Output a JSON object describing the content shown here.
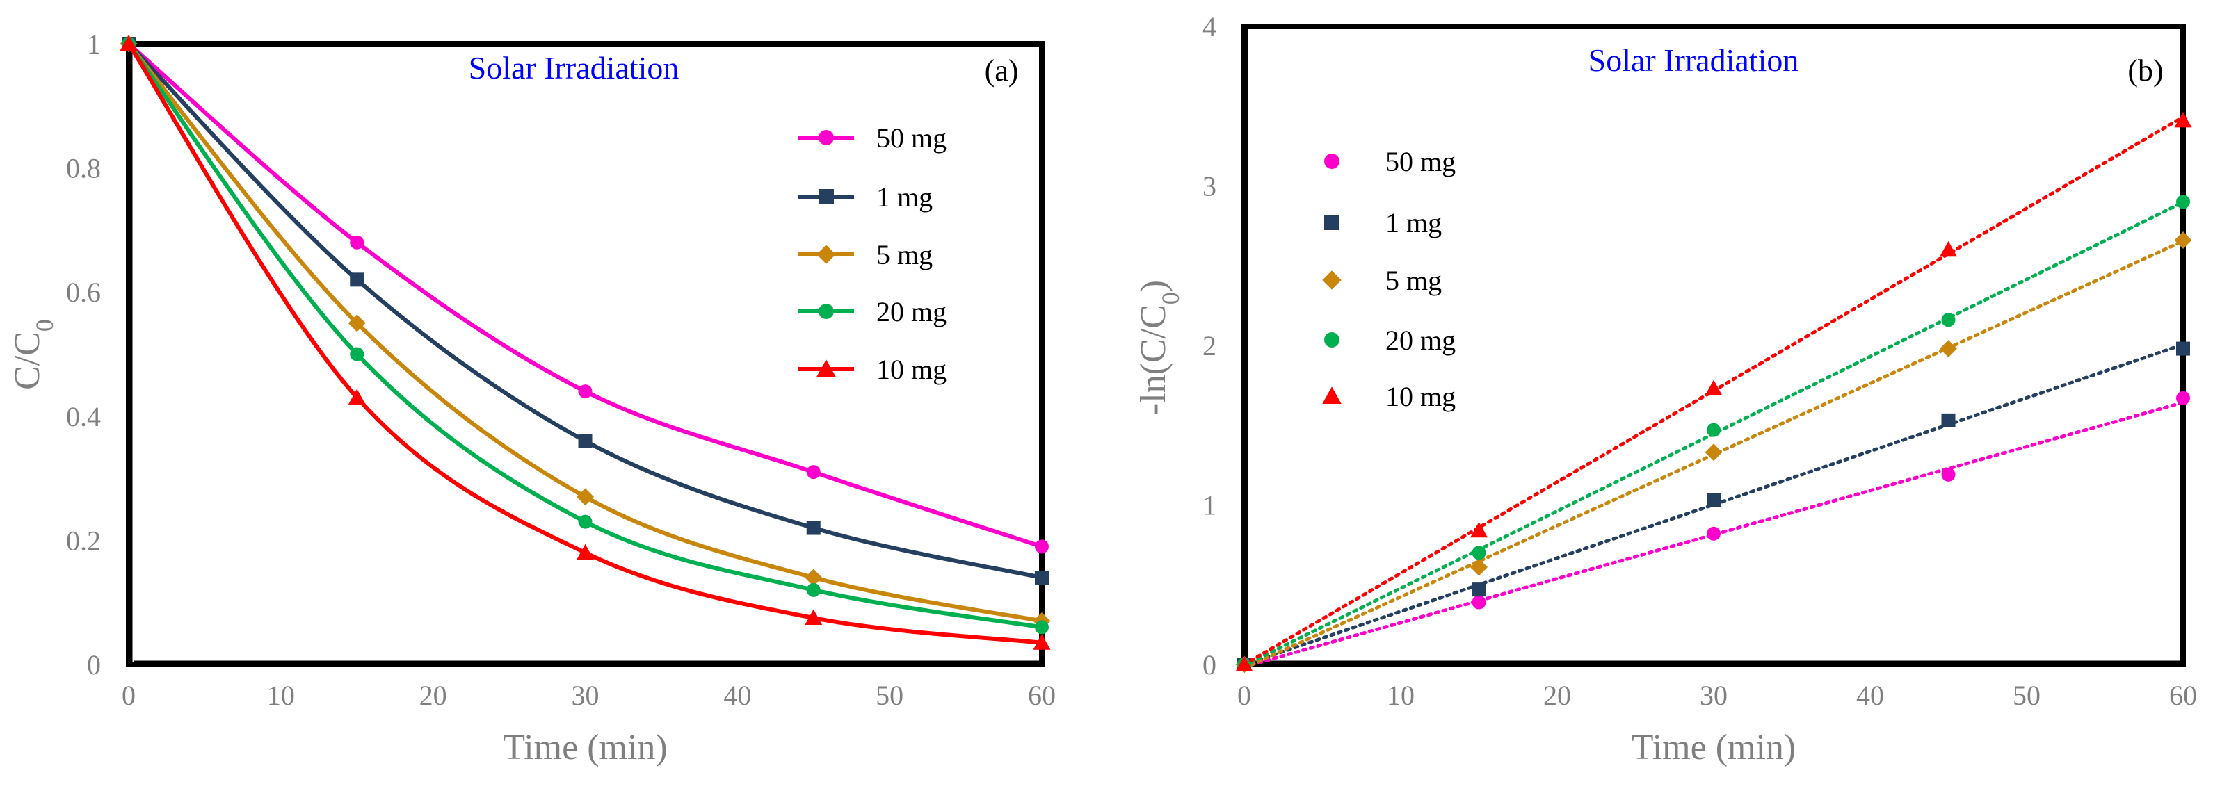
{
  "chart_data": [
    {
      "type": "line",
      "panel_label": "(a)",
      "annotation": "Solar Irradiation",
      "xlabel": "Time (min)",
      "ylabel": {
        "main": "C/C",
        "sub": "0"
      },
      "xlim": [
        0,
        60
      ],
      "ylim": [
        0,
        1
      ],
      "x_ticks": [
        "0",
        "10",
        "20",
        "30",
        "40",
        "50",
        "60"
      ],
      "y_ticks": [
        "0",
        "0.2",
        "0.4",
        "0.6",
        "0.8",
        "1"
      ],
      "x": [
        0,
        15,
        30,
        45,
        60
      ],
      "legend_position": "top-right",
      "series": [
        {
          "name": "50 mg",
          "color": "#ff00cc",
          "marker": "circle",
          "values": [
            1,
            0.68,
            0.44,
            0.31,
            0.19
          ]
        },
        {
          "name": "1 mg",
          "color": "#243f60",
          "marker": "square",
          "values": [
            1,
            0.62,
            0.36,
            0.22,
            0.14
          ]
        },
        {
          "name": "5 mg",
          "color": "#c8860c",
          "marker": "diamond",
          "values": [
            1,
            0.55,
            0.27,
            0.14,
            0.07
          ]
        },
        {
          "name": "20 mg",
          "color": "#00b050",
          "marker": "circle",
          "values": [
            1,
            0.5,
            0.23,
            0.12,
            0.06
          ]
        },
        {
          "name": "10 mg",
          "color": "#ff0000",
          "marker": "triangle",
          "values": [
            1,
            0.43,
            0.18,
            0.075,
            0.035
          ]
        }
      ]
    },
    {
      "type": "scatter",
      "panel_label": "(b)",
      "annotation": "Solar Irradiation",
      "xlabel": "Time (min)",
      "ylabel": {
        "main": "-ln(C/C",
        "sub": "0",
        "close": ")"
      },
      "xlim": [
        0,
        60
      ],
      "ylim": [
        0,
        4
      ],
      "x_ticks": [
        "0",
        "10",
        "20",
        "30",
        "40",
        "50",
        "60"
      ],
      "y_ticks": [
        "0",
        "1",
        "2",
        "3",
        "4"
      ],
      "x": [
        0,
        15,
        30,
        45,
        60
      ],
      "legend_position": "top-left",
      "trendline": "linear dotted",
      "series": [
        {
          "name": "50 mg",
          "color": "#ff00cc",
          "marker": "circle",
          "values": [
            0,
            0.39,
            0.82,
            1.19,
            1.67
          ]
        },
        {
          "name": "1 mg",
          "color": "#243f60",
          "marker": "square",
          "values": [
            0,
            0.47,
            1.03,
            1.53,
            1.98
          ]
        },
        {
          "name": "5 mg",
          "color": "#c8860c",
          "marker": "diamond",
          "values": [
            0,
            0.61,
            1.33,
            1.98,
            2.66
          ]
        },
        {
          "name": "20 mg",
          "color": "#00b050",
          "marker": "circle",
          "values": [
            0,
            0.7,
            1.47,
            2.16,
            2.9
          ]
        },
        {
          "name": "10 mg",
          "color": "#ff0000",
          "marker": "triangle",
          "values": [
            0,
            0.84,
            1.73,
            2.6,
            3.41
          ]
        }
      ]
    }
  ]
}
